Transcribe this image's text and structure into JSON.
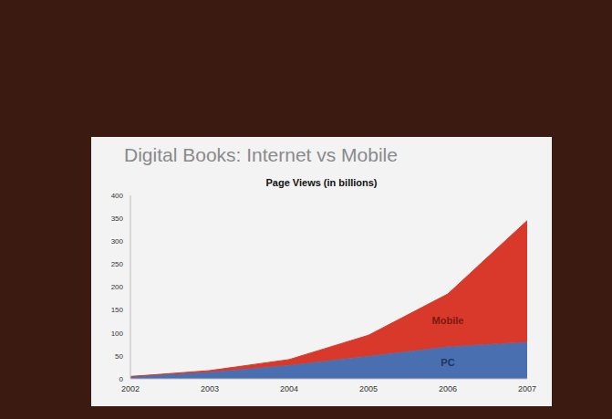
{
  "chart_data": {
    "type": "area",
    "title": "Digital Books: Internet vs Mobile",
    "subtitle": "Page Views (in billions)",
    "categories": [
      "2002",
      "2003",
      "2004",
      "2005",
      "2006",
      "2007"
    ],
    "series": [
      {
        "name": "PC",
        "color": "#4a6fb0",
        "values": [
          5,
          15,
          30,
          50,
          70,
          80
        ]
      },
      {
        "name": "Mobile",
        "color": "#d8392b",
        "values": [
          0,
          3,
          12,
          45,
          115,
          265
        ]
      }
    ],
    "stacked": true,
    "ylim": [
      0,
      400
    ],
    "yticks": [
      0,
      50,
      100,
      150,
      200,
      250,
      300,
      350,
      400
    ],
    "grid": false
  }
}
